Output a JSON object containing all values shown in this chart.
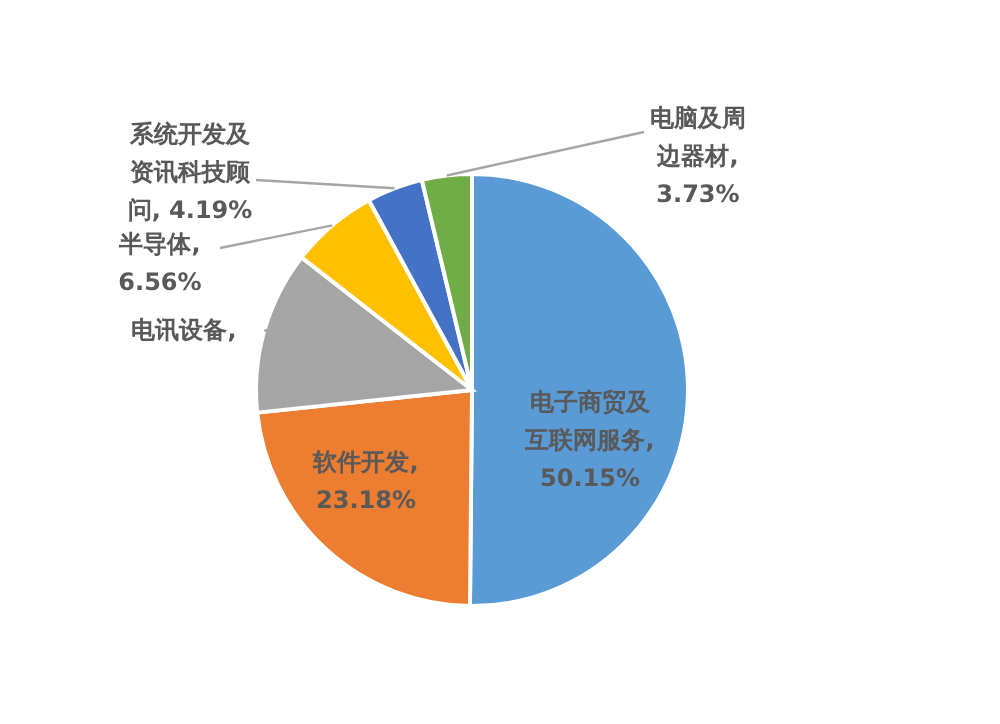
{
  "chart_data": {
    "type": "pie",
    "categories": [
      "电子商贸及互联网服务",
      "软件开发",
      "电讯设备",
      "半导体",
      "系统开发及资讯科技顾问",
      "电脑及周边器材"
    ],
    "values": [
      50.15,
      23.18,
      12.19,
      6.56,
      4.19,
      3.73
    ],
    "value_labels": [
      ", 50.15%",
      ", 23.18%",
      ",",
      ", 6.56%",
      ", 4.19%",
      ", 3.73%"
    ],
    "colors": [
      "#5b9bd5",
      "#ed7d31",
      "#a5a5a5",
      "#ffc000",
      "#4472c4",
      "#70ad47"
    ]
  }
}
